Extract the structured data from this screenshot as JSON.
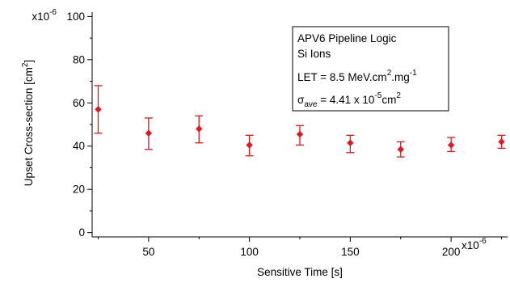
{
  "chart_data": {
    "type": "scatter",
    "xlabel": "Sensitive Time [s]",
    "ylabel_main": "Upset Cross-section [cm",
    "ylabel_sup": "2",
    "ylabel_end": "]",
    "x_exponent_label": "x10",
    "x_exponent_sup": "-6",
    "y_exponent_label": "x10",
    "y_exponent_sup": "-6",
    "xlim": [
      22,
      228
    ],
    "ylim": [
      -2,
      102
    ],
    "x_ticks": [
      50,
      100,
      150,
      200
    ],
    "x_tick_labels": [
      "50",
      "100",
      "150",
      "200"
    ],
    "y_ticks": [
      0,
      20,
      40,
      60,
      80,
      100
    ],
    "y_tick_labels": [
      "0",
      "20",
      "40",
      "60",
      "80",
      "100"
    ],
    "grid": false,
    "marker_color": "#e8141b",
    "series": [
      {
        "points": [
          {
            "x": 25,
            "y": 57,
            "ylow": 46,
            "yhigh": 68
          },
          {
            "x": 50,
            "y": 46,
            "ylow": 38.5,
            "yhigh": 53
          },
          {
            "x": 75,
            "y": 48,
            "ylow": 41.5,
            "yhigh": 54
          },
          {
            "x": 100,
            "y": 40.5,
            "ylow": 35.5,
            "yhigh": 45
          },
          {
            "x": 125,
            "y": 45.5,
            "ylow": 40.5,
            "yhigh": 49.5
          },
          {
            "x": 150,
            "y": 41.5,
            "ylow": 37,
            "yhigh": 45
          },
          {
            "x": 175,
            "y": 38.5,
            "ylow": 35,
            "yhigh": 42
          },
          {
            "x": 200,
            "y": 40.5,
            "ylow": 37.5,
            "yhigh": 44
          },
          {
            "x": 225,
            "y": 42,
            "ylow": 39,
            "yhigh": 45
          }
        ]
      }
    ],
    "legend": {
      "position": "top-right",
      "line1": "APV6 Pipeline Logic",
      "line2": "Si Ions",
      "let_prefix": "LET = 8.5 MeV.cm",
      "let_sup1": "2",
      "let_mid": ".mg",
      "let_sup2": "-1",
      "sigma_symbol": "σ",
      "sigma_sub": "ave",
      "sigma_value": " = 4.41  x 10",
      "sigma_sup": "-5",
      "sigma_unit": "cm",
      "sigma_unit_sup": "2"
    }
  }
}
